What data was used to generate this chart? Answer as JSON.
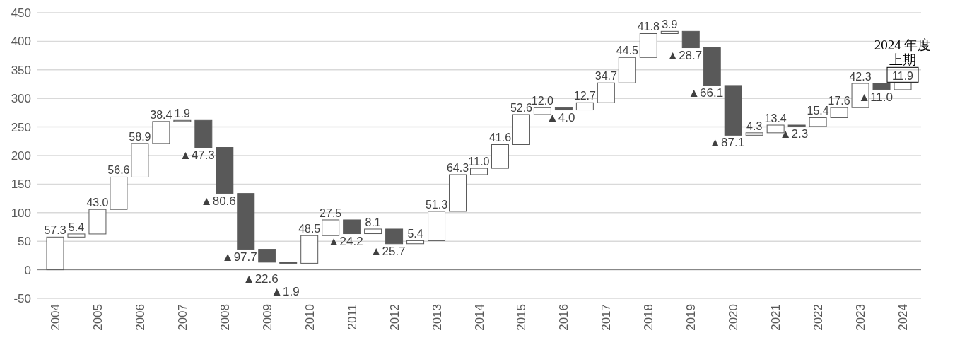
{
  "chart_data": {
    "type": "bar",
    "categories": [
      "2004",
      null,
      "2005",
      null,
      "2006",
      null,
      "2007",
      null,
      "2008",
      null,
      "2009",
      null,
      "2010",
      null,
      "2011",
      null,
      "2012",
      null,
      "2013",
      null,
      "2014",
      null,
      "2015",
      null,
      "2016",
      null,
      "2017",
      null,
      "2018",
      null,
      "2019",
      null,
      "2020",
      null,
      "2021",
      null,
      "2022",
      null,
      "2023",
      null,
      "2024"
    ],
    "values": [
      57.3,
      5.4,
      43.0,
      56.6,
      58.9,
      38.4,
      1.9,
      -47.3,
      -80.6,
      -97.7,
      -22.6,
      -1.9,
      48.5,
      27.5,
      -24.2,
      8.1,
      -25.7,
      5.4,
      51.3,
      64.3,
      11.0,
      41.6,
      52.6,
      12.0,
      -4.0,
      12.7,
      34.7,
      44.5,
      41.8,
      3.9,
      -28.7,
      -66.1,
      -87.1,
      4.3,
      13.4,
      -2.3,
      15.4,
      17.6,
      42.3,
      -11.0,
      11.9
    ],
    "base": [
      0,
      57.3,
      62.7,
      105.7,
      162.3,
      221.2,
      259.6,
      261.5,
      214.2,
      133.6,
      35.9,
      13.3,
      11.4,
      59.9,
      87.4,
      63.2,
      71.3,
      45.6,
      51.0,
      102.3,
      166.6,
      177.6,
      219.2,
      271.8,
      283.8,
      279.8,
      292.5,
      327.2,
      371.7,
      413.5,
      417.4,
      388.7,
      322.6,
      235.5,
      239.8,
      253.2,
      250.9,
      266.3,
      283.9,
      326.2,
      315.2
    ],
    "colors": [
      "#ffffff",
      "#ffffff",
      "#ffffff",
      "#ffffff",
      "#ffffff",
      "#ffffff",
      "#ffffff",
      "#595959",
      "#595959",
      "#595959",
      "#595959",
      "#595959",
      "#ffffff",
      "#ffffff",
      "#595959",
      "#ffffff",
      "#595959",
      "#ffffff",
      "#ffffff",
      "#ffffff",
      "#ffffff",
      "#ffffff",
      "#ffffff",
      "#ffffff",
      "#595959",
      "#ffffff",
      "#ffffff",
      "#ffffff",
      "#ffffff",
      "#ffffff",
      "#595959",
      "#595959",
      "#595959",
      "#ffffff",
      "#ffffff",
      "#595959",
      "#ffffff",
      "#ffffff",
      "#ffffff",
      "#595959",
      "#ffffff"
    ],
    "value_labels": [
      "57.3",
      "5.4",
      "43.0",
      "56.6",
      "58.9",
      "38.4",
      "1.9",
      "▲47.3",
      "▲80.6",
      "▲97.7",
      "▲22.6",
      "▲1.9",
      "48.5",
      "27.5",
      "▲24.2",
      "8.1",
      "▲25.7",
      "5.4",
      "51.3",
      "64.3",
      "11.0",
      "41.6",
      "52.6",
      "12.0",
      "▲4.0",
      "12.7",
      "34.7",
      "44.5",
      "41.8",
      "3.9",
      "▲28.7",
      "▲66.1",
      "▲87.1",
      "4.3",
      "13.4",
      "▲2.3",
      "15.4",
      "17.6",
      "42.3",
      "▲11.0",
      "11.9"
    ],
    "ylim": [
      -50,
      450
    ],
    "yticks": [
      -50,
      0,
      50,
      100,
      150,
      200,
      250,
      300,
      350,
      400,
      450
    ],
    "grid": "y",
    "annotations": [
      "2024 年度上期"
    ]
  }
}
